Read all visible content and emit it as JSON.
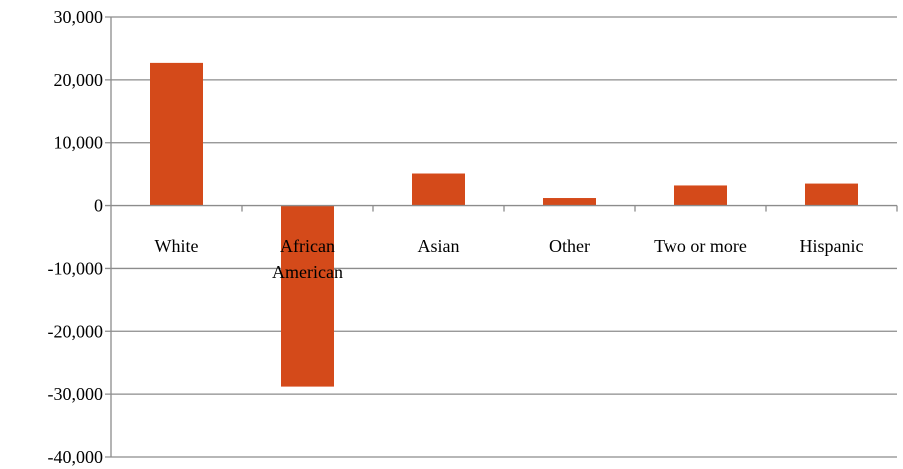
{
  "chart_data": {
    "type": "bar",
    "categories": [
      "White",
      "African American",
      "Asian",
      "Other",
      "Two or more",
      "Hispanic"
    ],
    "category_lines": [
      [
        "White"
      ],
      [
        "African",
        "American"
      ],
      [
        "Asian"
      ],
      [
        "Other"
      ],
      [
        "Two or more"
      ],
      [
        "Hispanic"
      ]
    ],
    "values": [
      22700,
      -28800,
      5100,
      1200,
      3200,
      3500
    ],
    "ylim": [
      -40000,
      30000
    ],
    "yticks": [
      30000,
      20000,
      10000,
      0,
      -10000,
      -20000,
      -30000,
      -40000
    ],
    "ytick_labels": [
      "30,000",
      "20,000",
      "10,000",
      "0",
      "-10,000",
      "-20,000",
      "-30,000",
      "-40,000"
    ],
    "grid": true,
    "bar_color": "#d44a1a",
    "title": "",
    "xlabel": "",
    "ylabel": ""
  }
}
